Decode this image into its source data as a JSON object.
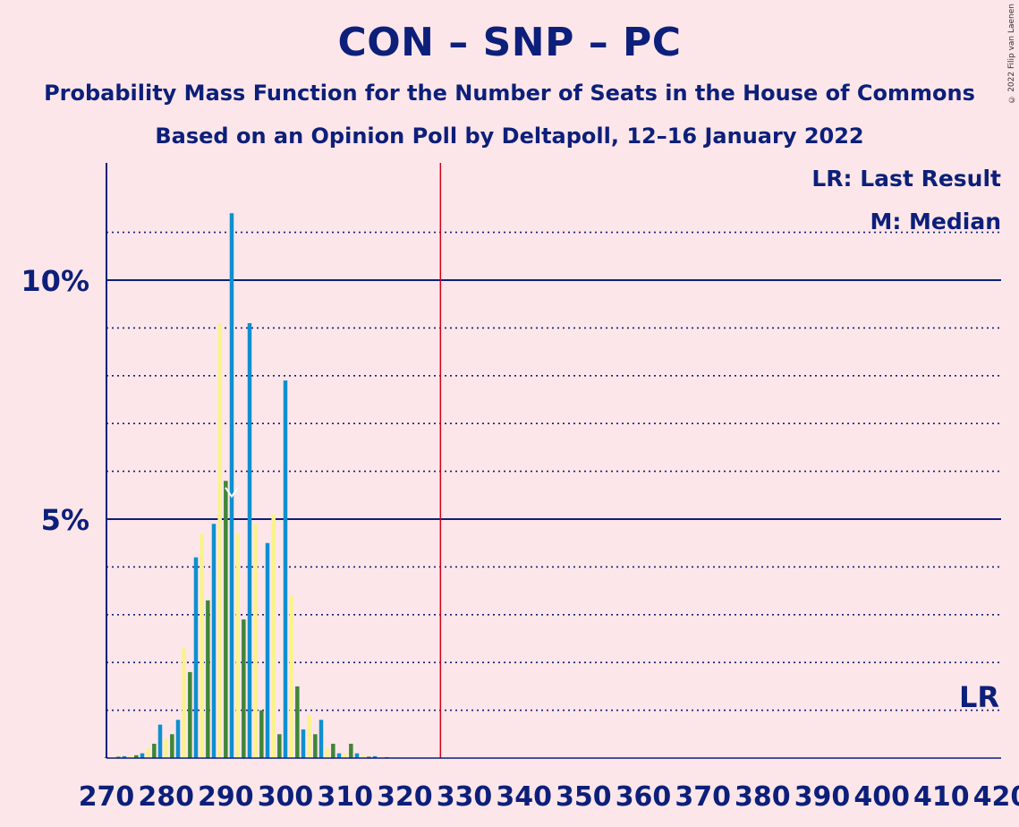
{
  "title": "CON – SNP – PC",
  "subtitle1": "Probability Mass Function for the Number of Seats in the House of Commons",
  "subtitle2": "Based on an Opinion Poll by Deltapoll, 12–16 January 2022",
  "copyright": "© 2022 Filip van Laenen",
  "legend": {
    "lr": "LR: Last Result",
    "median": "M: Median",
    "lr_marker": "LR"
  },
  "colors": {
    "background": "#fde6e9",
    "text": "#0c1f7a",
    "blue": "#0f8fce",
    "yellow": "#faf28b",
    "green": "#3f8637",
    "majority_line": "#d0021b"
  },
  "chart_data": {
    "type": "bar",
    "title": "CON – SNP – PC",
    "xlabel": "",
    "ylabel": "",
    "x_ticks": [
      270,
      280,
      290,
      300,
      310,
      320,
      330,
      340,
      350,
      360,
      370,
      380,
      390,
      400,
      410,
      420
    ],
    "y_ticks": [
      "5%",
      "10%"
    ],
    "xlim": [
      270,
      420
    ],
    "ylim": [
      0,
      12.4
    ],
    "grid": true,
    "majority_line_x": 326,
    "median_x": 291,
    "legend_position": "top-right",
    "series": [
      {
        "name": "",
        "points": [
          {
            "x": 270,
            "y": 0.02
          },
          {
            "x": 271,
            "y": 0.02
          },
          {
            "x": 272,
            "y": 0.03
          },
          {
            "x": 273,
            "y": 0.04
          },
          {
            "x": 274,
            "y": 0.05
          },
          {
            "x": 275,
            "y": 0.06
          },
          {
            "x": 276,
            "y": 0.1
          },
          {
            "x": 277,
            "y": 0.2
          },
          {
            "x": 278,
            "y": 0.3
          },
          {
            "x": 279,
            "y": 0.7
          },
          {
            "x": 280,
            "y": 0.4
          },
          {
            "x": 281,
            "y": 0.5
          },
          {
            "x": 282,
            "y": 0.8
          },
          {
            "x": 283,
            "y": 2.3
          },
          {
            "x": 284,
            "y": 1.8
          },
          {
            "x": 285,
            "y": 4.2
          },
          {
            "x": 286,
            "y": 4.7
          },
          {
            "x": 287,
            "y": 3.3
          },
          {
            "x": 288,
            "y": 4.9
          },
          {
            "x": 289,
            "y": 9.1
          },
          {
            "x": 290,
            "y": 5.8
          },
          {
            "x": 291,
            "y": 11.4
          },
          {
            "x": 292,
            "y": 4.7
          },
          {
            "x": 293,
            "y": 2.9
          },
          {
            "x": 294,
            "y": 9.1
          },
          {
            "x": 295,
            "y": 4.9
          },
          {
            "x": 296,
            "y": 1.0
          },
          {
            "x": 297,
            "y": 4.5
          },
          {
            "x": 298,
            "y": 5.1
          },
          {
            "x": 299,
            "y": 0.5
          },
          {
            "x": 300,
            "y": 7.9
          },
          {
            "x": 301,
            "y": 3.4
          },
          {
            "x": 302,
            "y": 1.5
          },
          {
            "x": 303,
            "y": 0.6
          },
          {
            "x": 304,
            "y": 0.9
          },
          {
            "x": 305,
            "y": 0.5
          },
          {
            "x": 306,
            "y": 0.8
          },
          {
            "x": 307,
            "y": 0.2
          },
          {
            "x": 308,
            "y": 0.3
          },
          {
            "x": 309,
            "y": 0.1
          },
          {
            "x": 310,
            "y": 0.1
          },
          {
            "x": 311,
            "y": 0.3
          },
          {
            "x": 312,
            "y": 0.1
          },
          {
            "x": 313,
            "y": 0.05
          },
          {
            "x": 314,
            "y": 0.03
          },
          {
            "x": 315,
            "y": 0.04
          },
          {
            "x": 316,
            "y": 0.02
          },
          {
            "x": 317,
            "y": 0.02
          },
          {
            "x": 318,
            "y": 0.01
          },
          {
            "x": 319,
            "y": 0.01
          },
          {
            "x": 320,
            "y": 0.01
          },
          {
            "x": 321,
            "y": 0.01
          },
          {
            "x": 322,
            "y": 0.01
          },
          {
            "x": 323,
            "y": 0.01
          },
          {
            "x": 324,
            "y": 0.01
          },
          {
            "x": 325,
            "y": 0.01
          },
          {
            "x": 326,
            "y": 0.01
          }
        ]
      }
    ]
  }
}
